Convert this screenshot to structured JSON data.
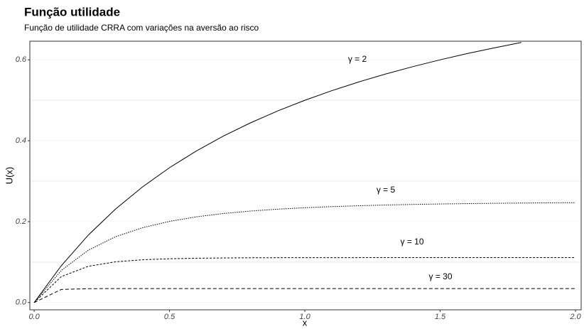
{
  "chart_data": {
    "type": "line",
    "title": "Função utilidade",
    "subtitle": "Função de utilidade CRRA com variações na aversão ao risco",
    "x_label": "x",
    "y_label": "U(x)",
    "x": [
      0,
      0.1,
      0.2,
      0.3,
      0.4,
      0.5,
      0.6,
      0.7,
      0.8,
      0.9,
      1.0,
      1.1,
      1.2,
      1.3,
      1.4,
      1.5,
      1.6,
      1.7,
      1.8,
      1.9,
      2.0
    ],
    "series": [
      {
        "name": "γ = 2",
        "color": "#000000",
        "linestyle": "solid",
        "values": [
          0,
          0.0909,
          0.1667,
          0.2308,
          0.2857,
          0.3333,
          0.375,
          0.4118,
          0.4444,
          0.4737,
          0.5,
          0.5238,
          0.5455,
          0.5652,
          0.5833,
          0.6,
          0.6154,
          0.6296,
          0.6429,
          null,
          null
        ]
      },
      {
        "name": "γ = 5",
        "color": "#000000",
        "linestyle": "dotted",
        "values": [
          0,
          0.0792,
          0.1294,
          0.1625,
          0.1849,
          0.2006,
          0.2119,
          0.2201,
          0.2262,
          0.2308,
          0.2344,
          0.2371,
          0.2393,
          0.2412,
          0.2425,
          0.2436,
          0.2445,
          0.2453,
          0.2459,
          0.2465,
          0.2469
        ]
      },
      {
        "name": "γ = 10",
        "color": "#000000",
        "linestyle": "dashed",
        "values": [
          0,
          0.064,
          0.0896,
          0.1006,
          0.1057,
          0.1082,
          0.1095,
          0.1102,
          0.1106,
          0.1108,
          0.1109,
          0.111,
          0.111,
          0.1111,
          0.1111,
          0.1111,
          0.1111,
          0.1111,
          0.1111,
          0.1111,
          0.1111
        ]
      },
      {
        "name": "γ = 30",
        "color": "#000000",
        "linestyle": "longdash",
        "values": [
          0,
          0.0323,
          0.0343,
          0.0345,
          0.0345,
          0.0345,
          0.0345,
          0.0345,
          0.0345,
          0.0345,
          0.0345,
          0.0345,
          0.0345,
          0.0345,
          0.0345,
          0.0345,
          0.0345,
          0.0345,
          0.0345,
          0.0345,
          0.0345
        ]
      }
    ],
    "xlim": [
      -0.016,
      2.021
    ],
    "ylim": [
      -0.018,
      0.646
    ],
    "xticks": [
      {
        "value": 0,
        "label": "0.0"
      },
      0.5,
      {
        "value": 1,
        "label": "1.0"
      },
      1.5,
      {
        "value": 2,
        "label": "2.0"
      }
    ],
    "yticks": [
      {
        "value": 0,
        "label": "0.0"
      },
      0.2,
      0.4,
      0.6
    ],
    "minor_yticks": [
      0.1,
      0.3,
      0.5
    ],
    "grid": true
  }
}
